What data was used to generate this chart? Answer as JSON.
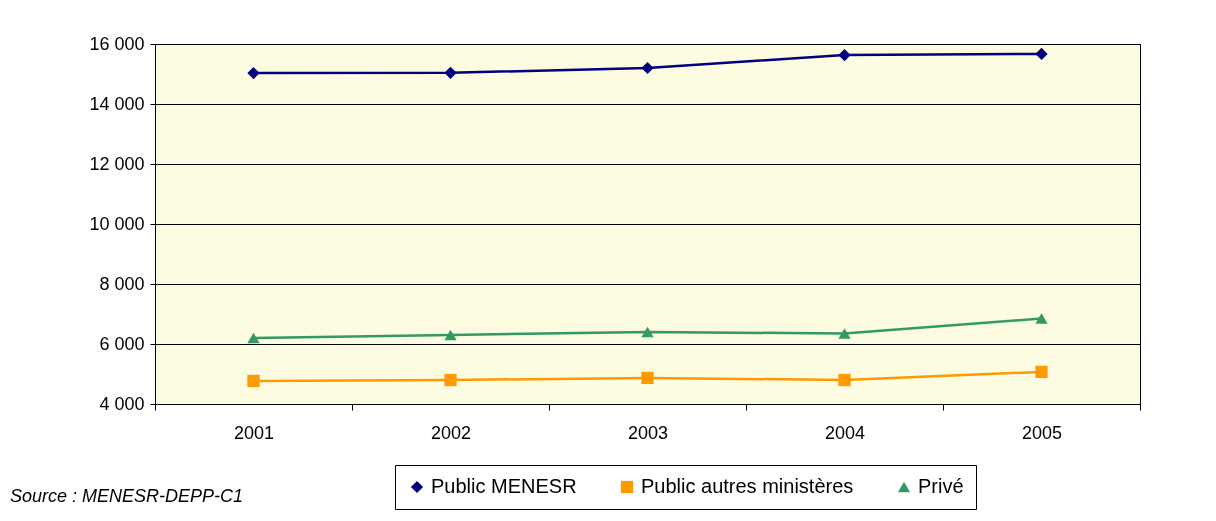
{
  "chart_data": {
    "type": "line",
    "categories": [
      "2001",
      "2002",
      "2003",
      "2004",
      "2005"
    ],
    "series": [
      {
        "name": "Public MENESR",
        "color": "#000080",
        "marker": "diamond",
        "values": [
          15030,
          15040,
          15200,
          15630,
          15670
        ]
      },
      {
        "name": "Public autres ministères",
        "color": "#ff9900",
        "marker": "square",
        "values": [
          4770,
          4800,
          4870,
          4800,
          5070
        ]
      },
      {
        "name": "Privé",
        "color": "#339966",
        "marker": "triangle",
        "values": [
          6200,
          6300,
          6400,
          6350,
          6850
        ]
      }
    ],
    "ylim": [
      4000,
      16000
    ],
    "yticks": [
      {
        "value": 4000,
        "label": "4 000"
      },
      {
        "value": 6000,
        "label": "6 000"
      },
      {
        "value": 8000,
        "label": "8 000"
      },
      {
        "value": 10000,
        "label": "10 000"
      },
      {
        "value": 12000,
        "label": "12 000"
      },
      {
        "value": 14000,
        "label": "14 000"
      },
      {
        "value": 16000,
        "label": "16 000"
      }
    ],
    "grid": "y",
    "legend": "bottom right",
    "annotations": [
      "Source : MENESR-DEPP-C1"
    ]
  }
}
